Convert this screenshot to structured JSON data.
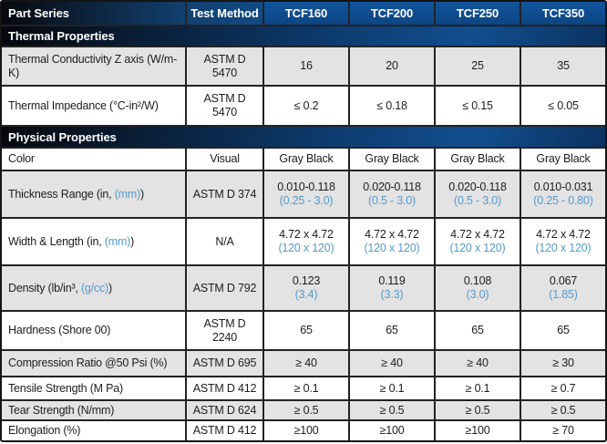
{
  "colors": {
    "header_blue": "#0e4c90",
    "header_dark": "#06080d",
    "accent_blue": "#569ac8",
    "row_gray": "#e3e3e4",
    "row_white": "#ffffff",
    "grid_line": "#232323"
  },
  "header": {
    "columns": [
      {
        "label": "Part Series"
      },
      {
        "label": "Test Method"
      },
      {
        "label": "TCF160"
      },
      {
        "label": "TCF200"
      },
      {
        "label": "TCF250"
      },
      {
        "label": "TCF350"
      }
    ]
  },
  "sections": [
    {
      "title": "Thermal Properties",
      "rows": [
        {
          "label": {
            "pre": "Thermal Conductivity Z axis (W/m-K)",
            "blue": "",
            "post": ""
          },
          "method": "ASTM D 5470",
          "values": [
            {
              "main": "16",
              "sub": ""
            },
            {
              "main": "20",
              "sub": ""
            },
            {
              "main": "25",
              "sub": ""
            },
            {
              "main": "35",
              "sub": ""
            }
          ]
        },
        {
          "label": {
            "pre": "Thermal Impedance (°C-in²/W)",
            "blue": "",
            "post": ""
          },
          "method": "ASTM D 5470",
          "values": [
            {
              "main": "≤ 0.2",
              "sub": ""
            },
            {
              "main": "≤ 0.18",
              "sub": ""
            },
            {
              "main": "≤ 0.15",
              "sub": ""
            },
            {
              "main": "≤ 0.05",
              "sub": ""
            }
          ]
        }
      ]
    },
    {
      "title": "Physical Properties",
      "rows": [
        {
          "label": {
            "pre": "Color",
            "blue": "",
            "post": ""
          },
          "method": "Visual",
          "values": [
            {
              "main": "Gray Black",
              "sub": ""
            },
            {
              "main": "Gray Black",
              "sub": ""
            },
            {
              "main": "Gray Black",
              "sub": ""
            },
            {
              "main": "Gray Black",
              "sub": ""
            }
          ]
        },
        {
          "label": {
            "pre": "Thickness Range (in, ",
            "blue": "(mm)",
            "post": ")"
          },
          "method": "ASTM D 374",
          "values": [
            {
              "main": "0.010-0.118",
              "sub": "(0.25 - 3.0)"
            },
            {
              "main": "0.020-0.118",
              "sub": "(0.5 - 3.0)"
            },
            {
              "main": "0.020-0.118",
              "sub": "(0.5 - 3.0)"
            },
            {
              "main": "0.010-0.031",
              "sub": "(0.25 - 0.80)"
            }
          ]
        },
        {
          "label": {
            "pre": "Width & Length (in, ",
            "blue": "(mm)",
            "post": ")"
          },
          "method": "N/A",
          "values": [
            {
              "main": "4.72 x 4.72",
              "sub": "(120 x 120)"
            },
            {
              "main": "4.72 x 4.72",
              "sub": "(120 x 120)"
            },
            {
              "main": "4.72 x 4.72",
              "sub": "(120 x 120)"
            },
            {
              "main": "4.72 x 4.72",
              "sub": "(120 x 120)"
            }
          ]
        },
        {
          "label": {
            "pre": "Density (lb/in³, ",
            "blue": "(g/cc)",
            "post": ")"
          },
          "method": "ASTM D 792",
          "values": [
            {
              "main": "0.123",
              "sub": "(3.4)"
            },
            {
              "main": "0.119",
              "sub": "(3.3)"
            },
            {
              "main": "0.108",
              "sub": "(3.0)"
            },
            {
              "main": "0.067",
              "sub": "(1.85)"
            }
          ]
        },
        {
          "label": {
            "pre": "Hardness (Shore 00)",
            "blue": "",
            "post": ""
          },
          "method": "ASTM D 2240",
          "values": [
            {
              "main": "65",
              "sub": ""
            },
            {
              "main": "65",
              "sub": ""
            },
            {
              "main": "65",
              "sub": ""
            },
            {
              "main": "65",
              "sub": ""
            }
          ]
        },
        {
          "label": {
            "pre": "Compression Ratio @50 Psi (%)",
            "blue": "",
            "post": ""
          },
          "method": "ASTM D 695",
          "values": [
            {
              "main": "≥ 40",
              "sub": ""
            },
            {
              "main": "≥ 40",
              "sub": ""
            },
            {
              "main": "≥ 40",
              "sub": ""
            },
            {
              "main": "≥ 30",
              "sub": ""
            }
          ]
        },
        {
          "label": {
            "pre": "Tensile Strength (M Pa)",
            "blue": "",
            "post": ""
          },
          "method": "ASTM D 412",
          "values": [
            {
              "main": "≥ 0.1",
              "sub": ""
            },
            {
              "main": "≥ 0.1",
              "sub": ""
            },
            {
              "main": "≥ 0.1",
              "sub": ""
            },
            {
              "main": "≥ 0.7",
              "sub": ""
            }
          ]
        },
        {
          "label": {
            "pre": "Tear Strength (N/mm)",
            "blue": "",
            "post": ""
          },
          "method": "ASTM D 624",
          "values": [
            {
              "main": "≥ 0.5",
              "sub": ""
            },
            {
              "main": "≥ 0.5",
              "sub": ""
            },
            {
              "main": "≥ 0.5",
              "sub": ""
            },
            {
              "main": "≥ 0.5",
              "sub": ""
            }
          ]
        },
        {
          "label": {
            "pre": "Elongation (%)",
            "blue": "",
            "post": ""
          },
          "method": "ASTM D 412",
          "values": [
            {
              "main": "≥100",
              "sub": ""
            },
            {
              "main": "≥100",
              "sub": ""
            },
            {
              "main": "≥100",
              "sub": ""
            },
            {
              "main": "≥ 70",
              "sub": ""
            }
          ]
        }
      ]
    }
  ]
}
